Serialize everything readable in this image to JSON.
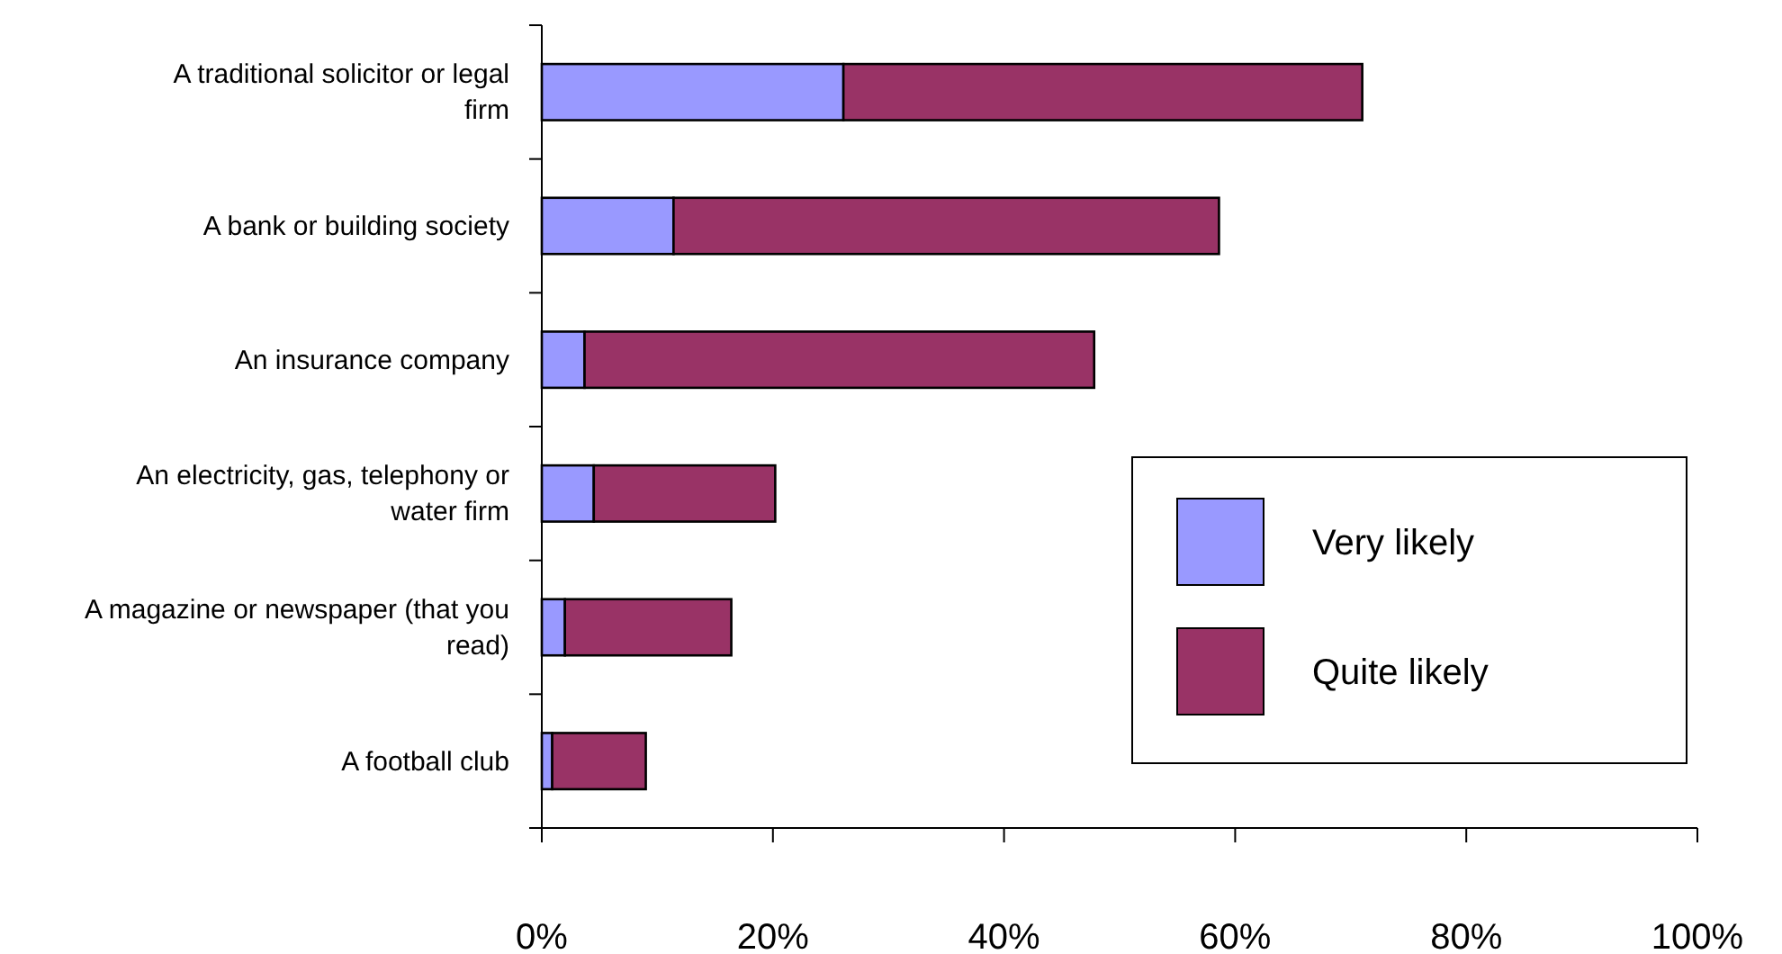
{
  "chart_data": {
    "type": "bar",
    "orientation": "horizontal",
    "stacked": true,
    "categories": [
      "A traditional solicitor or legal firm",
      "A bank or building society",
      "An insurance company",
      "An electricity, gas, telephony or water firm",
      "A magazine or newspaper (that you read)",
      "A football club"
    ],
    "series": [
      {
        "name": "Very likely",
        "color": "#9999ff",
        "values": [
          26.1,
          11.4,
          3.7,
          4.5,
          2.0,
          0.9
        ]
      },
      {
        "name": "Quite likely",
        "color": "#993366",
        "values": [
          44.9,
          47.2,
          44.1,
          15.7,
          14.4,
          8.1
        ]
      }
    ],
    "xlim": [
      0,
      100
    ],
    "xticks": [
      {
        "value": 0,
        "label": "0%"
      },
      {
        "value": 20,
        "label": "20%"
      },
      {
        "value": 40,
        "label": "40%"
      },
      {
        "value": 60,
        "label": "60%"
      },
      {
        "value": 80,
        "label": "80%"
      },
      {
        "value": 100,
        "label": "100%"
      }
    ],
    "grid": false,
    "legend": "right"
  }
}
